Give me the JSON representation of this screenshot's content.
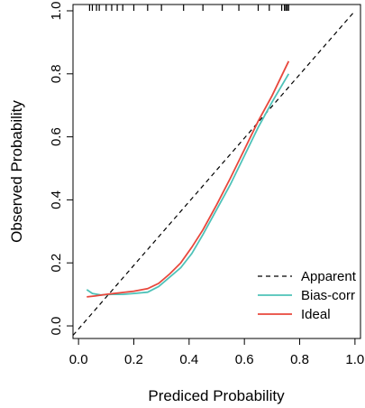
{
  "chart_data": {
    "type": "line",
    "xlabel": "Prediced Probability",
    "ylabel": "Observed Probability",
    "xlim": [
      -0.02,
      1.02
    ],
    "ylim": [
      -0.04,
      1.02
    ],
    "x_ticks": [
      "0.0",
      "0.2",
      "0.4",
      "0.6",
      "0.8",
      "1.0"
    ],
    "y_ticks": [
      "0.0",
      "0.2",
      "0.4",
      "0.6",
      "0.8",
      "1.0"
    ],
    "grid": false,
    "legend_position": "bottom-right",
    "series": [
      {
        "name": "Apparent",
        "color": "#000000",
        "style": "dashed",
        "x": [
          -0.02,
          1.0
        ],
        "y": [
          -0.03,
          1.0
        ]
      },
      {
        "name": "Bias-corr",
        "color": "#4ec2b8",
        "style": "solid",
        "x": [
          0.03,
          0.05,
          0.08,
          0.12,
          0.16,
          0.2,
          0.25,
          0.29,
          0.33,
          0.37,
          0.41,
          0.45,
          0.5,
          0.55,
          0.6,
          0.65,
          0.7,
          0.76
        ],
        "y": [
          0.115,
          0.103,
          0.098,
          0.1,
          0.1,
          0.103,
          0.107,
          0.125,
          0.155,
          0.185,
          0.23,
          0.29,
          0.37,
          0.45,
          0.54,
          0.63,
          0.71,
          0.8
        ]
      },
      {
        "name": "Ideal",
        "color": "#e8473c",
        "style": "solid",
        "x": [
          0.03,
          0.06,
          0.1,
          0.15,
          0.2,
          0.25,
          0.29,
          0.33,
          0.37,
          0.41,
          0.45,
          0.5,
          0.55,
          0.6,
          0.65,
          0.7,
          0.76
        ],
        "y": [
          0.092,
          0.095,
          0.1,
          0.105,
          0.11,
          0.118,
          0.135,
          0.165,
          0.2,
          0.25,
          0.305,
          0.385,
          0.47,
          0.56,
          0.65,
          0.73,
          0.84
        ]
      }
    ],
    "rug_x": [
      0.04,
      0.05,
      0.065,
      0.075,
      0.1,
      0.12,
      0.14,
      0.16,
      0.2,
      0.25,
      0.3,
      0.38,
      0.45,
      0.52,
      0.58,
      0.65,
      0.69,
      0.735,
      0.745,
      0.75,
      0.755,
      0.76
    ]
  }
}
